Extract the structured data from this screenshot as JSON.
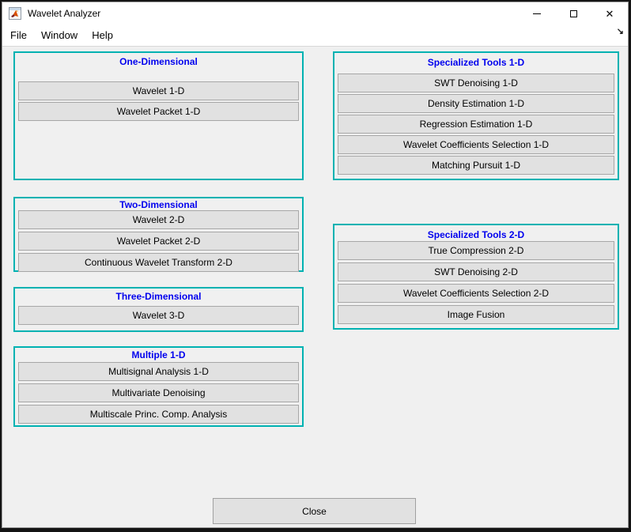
{
  "window": {
    "title": "Wavelet Analyzer",
    "icons": {
      "app": "matlab-logo",
      "minimize": "─",
      "maximize": "□",
      "close": "✕",
      "dock": "↘"
    }
  },
  "menu": {
    "items": [
      "File",
      "Window",
      "Help"
    ]
  },
  "panels": [
    {
      "title": "One-Dimensional",
      "buttons": [
        "Wavelet 1-D",
        "Wavelet Packet 1-D"
      ]
    },
    {
      "title": "Two-Dimensional",
      "buttons": [
        "Wavelet 2-D",
        "Wavelet Packet 2-D",
        "Continuous Wavelet Transform 2-D"
      ]
    },
    {
      "title": "Three-Dimensional",
      "buttons": [
        "Wavelet 3-D"
      ]
    },
    {
      "title": "Multiple 1-D",
      "buttons": [
        "Multisignal Analysis 1-D",
        "Multivariate Denoising",
        "Multiscale Princ. Comp. Analysis"
      ]
    },
    {
      "title": "Specialized Tools 1-D",
      "buttons": [
        "SWT Denoising 1-D",
        "Density Estimation 1-D",
        "Regression Estimation 1-D",
        "Wavelet Coefficients Selection 1-D",
        "Matching Pursuit 1-D"
      ]
    },
    {
      "title": "Specialized Tools 2-D",
      "buttons": [
        "True Compression 2-D",
        "SWT Denoising 2-D",
        "Wavelet Coefficients Selection 2-D",
        "Image Fusion"
      ]
    }
  ],
  "footer": {
    "close_label": "Close"
  },
  "colors": {
    "backdrop": "#141414",
    "window_bg": "#f0f0f0",
    "bar_bg": "#ffffff",
    "panel_border": "#00b2b2",
    "panel_title": "#0000ee",
    "button_face": "#e1e1e1",
    "button_border": "#a7a7a7",
    "text": "#000000"
  }
}
